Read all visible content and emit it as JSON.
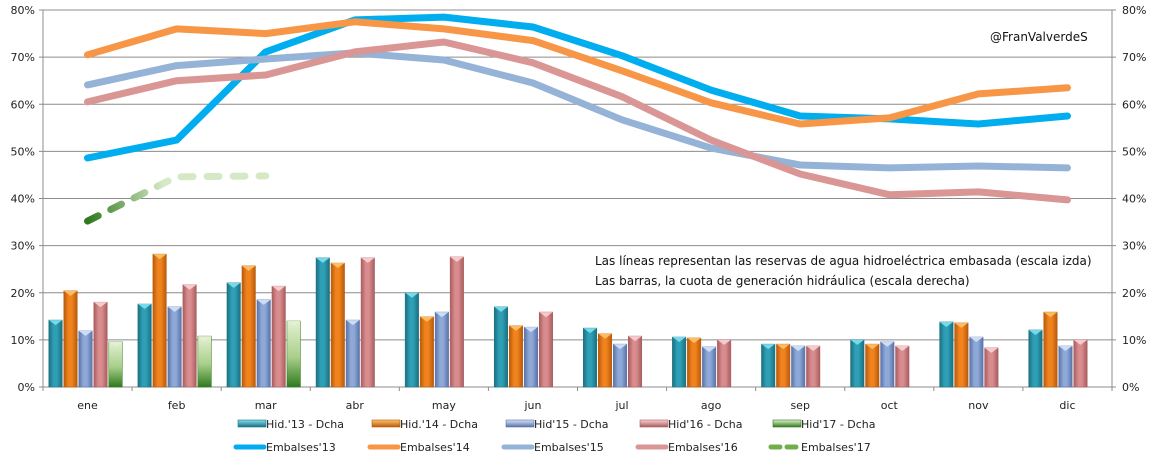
{
  "chart_data": {
    "type": "bar+line",
    "title": "",
    "watermark": "@FranValverdeS",
    "annotation_lines": [
      "Las líneas representan las reservas de agua hidroeléctrica  embasada (escala izda)",
      "Las barras, la cuota de generación hidráulica (escala derecha)"
    ],
    "categories": [
      "ene",
      "feb",
      "mar",
      "abr",
      "may",
      "jun",
      "jul",
      "ago",
      "sep",
      "oct",
      "nov",
      "dic"
    ],
    "left_axis": {
      "ylim": [
        0,
        80
      ],
      "ticks": [
        "0%",
        "10%",
        "20%",
        "30%",
        "40%",
        "50%",
        "60%",
        "70%",
        "80%"
      ],
      "tick_values": [
        0,
        10,
        20,
        30,
        40,
        50,
        60,
        70,
        80
      ]
    },
    "right_axis": {
      "ylim": [
        0,
        80
      ],
      "ticks": [
        "0%",
        "10%",
        "20%",
        "30%",
        "40%",
        "50%",
        "60%",
        "70%",
        "80%"
      ],
      "tick_values": [
        0,
        10,
        20,
        30,
        40,
        50,
        60,
        70,
        80
      ]
    },
    "grid": true,
    "legend_position": "bottom",
    "bar_series": [
      {
        "name": "Hid.'13 - Dcha",
        "axis": "right",
        "color": "#2E9FB5",
        "light": "#7FE0F0",
        "dark": "#1B6F80",
        "values": [
          14.2,
          17.6,
          22.1,
          27.4,
          20.0,
          17.0,
          12.5,
          10.6,
          9.1,
          10.0,
          13.8,
          12.1
        ]
      },
      {
        "name": "Hid.'14 - Dcha",
        "axis": "right",
        "color": "#F0831E",
        "light": "#FFC36A",
        "dark": "#B85A0A",
        "values": [
          20.4,
          28.2,
          25.7,
          26.3,
          14.9,
          13.0,
          11.3,
          10.4,
          9.1,
          9.1,
          13.6,
          15.9
        ]
      },
      {
        "name": "Hid'15 - Dcha",
        "axis": "right",
        "color": "#8EA9D8",
        "light": "#D4E2FA",
        "dark": "#5A72A8",
        "values": [
          11.9,
          17.0,
          18.5,
          14.2,
          15.9,
          12.7,
          9.1,
          8.5,
          8.7,
          9.6,
          10.6,
          8.7
        ]
      },
      {
        "name": "Hid'16 - Dcha",
        "axis": "right",
        "color": "#D88C8E",
        "light": "#FAD2D4",
        "dark": "#A85C5E",
        "values": [
          18.0,
          21.7,
          21.4,
          27.4,
          27.6,
          15.9,
          10.8,
          10.0,
          8.7,
          8.7,
          8.3,
          10.0
        ]
      },
      {
        "name": "Hid'17 - Dcha",
        "axis": "right",
        "color": "#6FAE48",
        "light": "#E4F0D2",
        "dark": "#2E7A1C",
        "values": [
          9.6,
          10.8,
          14.0,
          null,
          null,
          null,
          null,
          null,
          null,
          null,
          null,
          null
        ]
      }
    ],
    "line_series": [
      {
        "name": "Embalses'13",
        "axis": "left",
        "color": "#00AEEF",
        "dashed": false,
        "values": [
          48.6,
          52.4,
          71.1,
          77.9,
          78.5,
          76.4,
          70.3,
          63.0,
          57.5,
          56.9,
          55.8,
          57.5
        ]
      },
      {
        "name": "Embalses'14",
        "axis": "left",
        "color": "#F79646",
        "dashed": false,
        "values": [
          70.5,
          76.0,
          75.0,
          77.5,
          76.0,
          73.5,
          67.1,
          60.3,
          55.8,
          57.1,
          62.2,
          63.5
        ]
      },
      {
        "name": "Embalses'15",
        "axis": "left",
        "color": "#95B3D7",
        "dashed": false,
        "values": [
          64.1,
          68.2,
          69.6,
          70.9,
          69.4,
          64.5,
          56.7,
          50.7,
          47.1,
          46.5,
          46.9,
          46.5
        ]
      },
      {
        "name": "Embalses'16",
        "axis": "left",
        "color": "#D99694",
        "dashed": false,
        "values": [
          60.5,
          65.0,
          66.2,
          71.1,
          73.2,
          68.8,
          61.6,
          52.4,
          45.2,
          40.8,
          41.4,
          39.7
        ]
      },
      {
        "name": "Embalses'17",
        "axis": "left",
        "color": "#4F9A2F",
        "color_end": "#D6E9C6",
        "dashed": true,
        "values": [
          35.2,
          44.6,
          44.8,
          null,
          null,
          null,
          null,
          null,
          null,
          null,
          null,
          null
        ]
      }
    ]
  }
}
